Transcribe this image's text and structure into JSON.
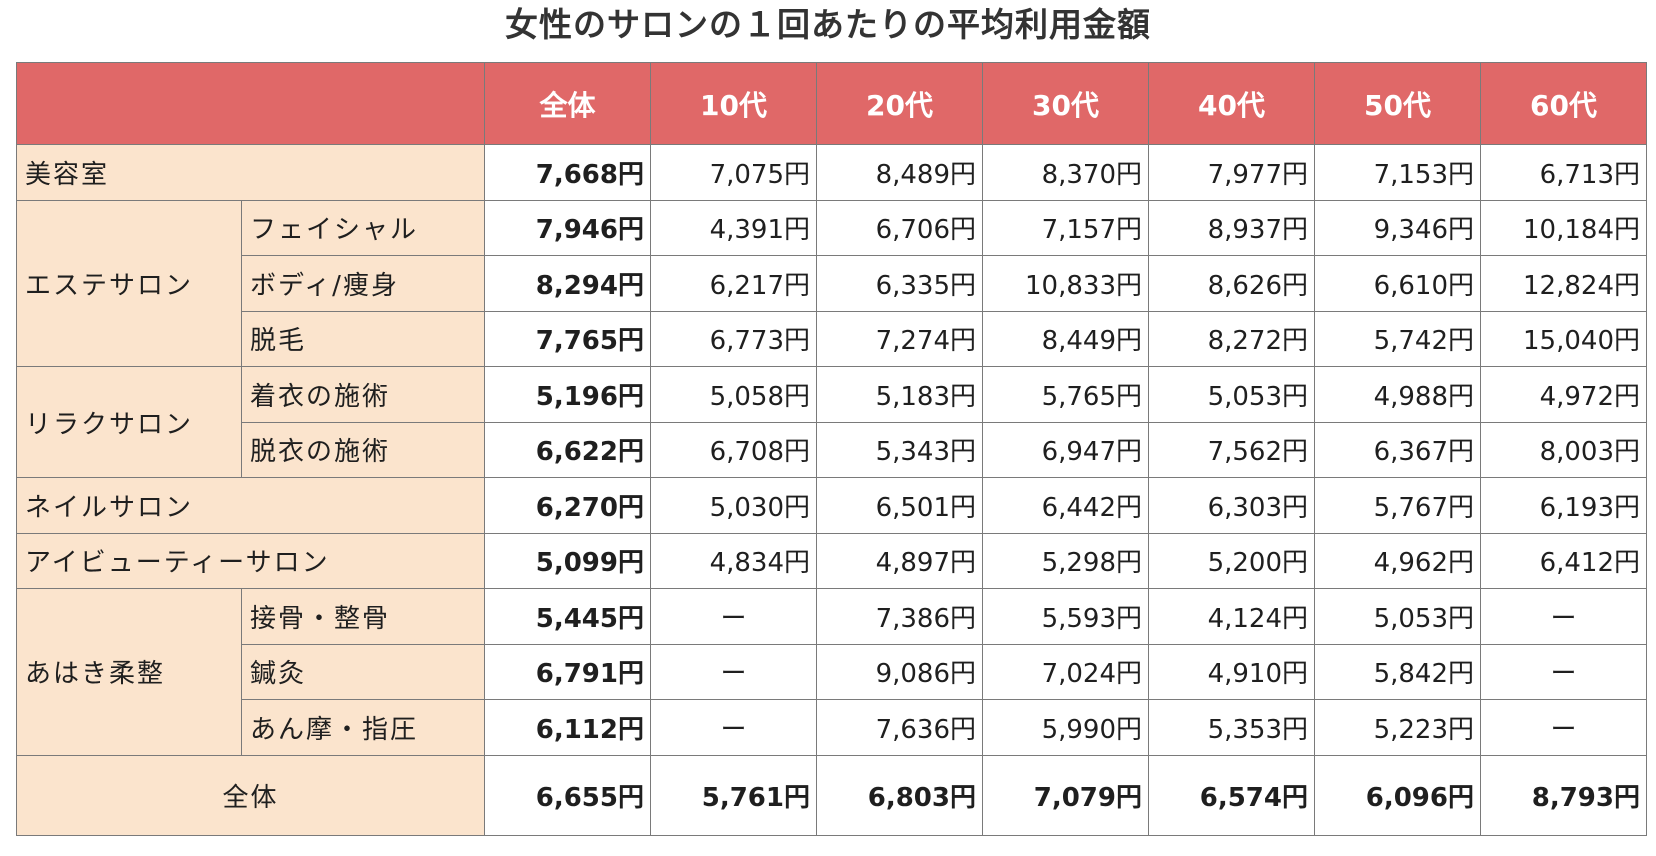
{
  "title": "女性のサロンの１回あたりの平均利用金額",
  "columns": [
    "全体",
    "10代",
    "20代",
    "30代",
    "40代",
    "50代",
    "60代"
  ],
  "rows": [
    {
      "category": "美容室",
      "sub": "",
      "values": [
        "7,668円",
        "7,075円",
        "8,489円",
        "8,370円",
        "7,977円",
        "7,153円",
        "6,713円"
      ]
    },
    {
      "category": "エステサロン",
      "sub": "フェイシャル",
      "values": [
        "7,946円",
        "4,391円",
        "6,706円",
        "7,157円",
        "8,937円",
        "9,346円",
        "10,184円"
      ]
    },
    {
      "category": "",
      "sub": "ボディ/痩身",
      "values": [
        "8,294円",
        "6,217円",
        "6,335円",
        "10,833円",
        "8,626円",
        "6,610円",
        "12,824円"
      ]
    },
    {
      "category": "",
      "sub": "脱毛",
      "values": [
        "7,765円",
        "6,773円",
        "7,274円",
        "8,449円",
        "8,272円",
        "5,742円",
        "15,040円"
      ]
    },
    {
      "category": "リラクサロン",
      "sub": "着衣の施術",
      "values": [
        "5,196円",
        "5,058円",
        "5,183円",
        "5,765円",
        "5,053円",
        "4,988円",
        "4,972円"
      ]
    },
    {
      "category": "",
      "sub": "脱衣の施術",
      "values": [
        "6,622円",
        "6,708円",
        "5,343円",
        "6,947円",
        "7,562円",
        "6,367円",
        "8,003円"
      ]
    },
    {
      "category": "ネイルサロン",
      "sub": "",
      "values": [
        "6,270円",
        "5,030円",
        "6,501円",
        "6,442円",
        "6,303円",
        "5,767円",
        "6,193円"
      ]
    },
    {
      "category": "アイビューティーサロン",
      "sub": "",
      "values": [
        "5,099円",
        "4,834円",
        "4,897円",
        "5,298円",
        "5,200円",
        "4,962円",
        "6,412円"
      ]
    },
    {
      "category": "あはき柔整",
      "sub": "接骨・整骨",
      "values": [
        "5,445円",
        "ー",
        "7,386円",
        "5,593円",
        "4,124円",
        "5,053円",
        "ー"
      ]
    },
    {
      "category": "",
      "sub": "鍼灸",
      "values": [
        "6,791円",
        "ー",
        "9,086円",
        "7,024円",
        "4,910円",
        "5,842円",
        "ー"
      ]
    },
    {
      "category": "",
      "sub": "あん摩・指圧",
      "values": [
        "6,112円",
        "ー",
        "7,636円",
        "5,990円",
        "5,353円",
        "5,223円",
        "ー"
      ]
    },
    {
      "category": "全体",
      "sub": "",
      "values": [
        "6,655円",
        "5,761円",
        "6,803円",
        "7,079円",
        "6,574円",
        "6,096円",
        "8,793円"
      ]
    }
  ]
}
